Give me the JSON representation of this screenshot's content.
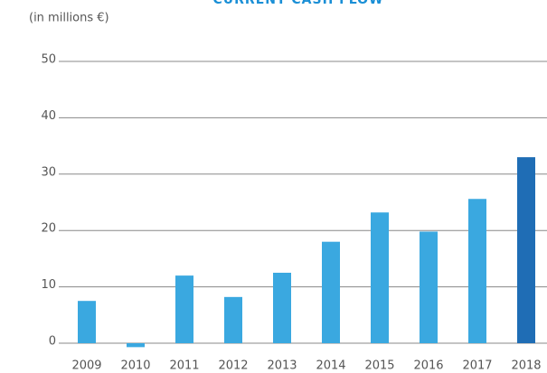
{
  "chart_data": {
    "type": "bar",
    "title": "CURRENT CASH FLOW",
    "subtitle": "(in millions €)",
    "categories": [
      "2009",
      "2010",
      "2011",
      "2012",
      "2013",
      "2014",
      "2015",
      "2016",
      "2017",
      "2018"
    ],
    "values": [
      7.5,
      -0.7,
      12,
      8.2,
      12.5,
      18,
      23.2,
      19.8,
      25.6,
      33
    ],
    "colors": [
      "#3aa8e0",
      "#3aa8e0",
      "#3aa8e0",
      "#3aa8e0",
      "#3aa8e0",
      "#3aa8e0",
      "#3aa8e0",
      "#3aa8e0",
      "#3aa8e0",
      "#1f6db5"
    ],
    "ylim": [
      -1,
      50
    ],
    "yticks": [
      0,
      10,
      20,
      30,
      40,
      50
    ],
    "grid": true
  }
}
